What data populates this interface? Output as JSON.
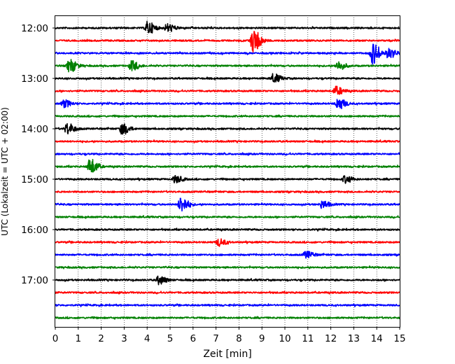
{
  "chart_data": {
    "type": "line",
    "title": "",
    "xlabel": "Zeit  [min]",
    "ylabel": "UTC (Lokalzeit = UTC + 02:00)",
    "xlim": [
      0,
      15
    ],
    "x_ticks": [
      0,
      1,
      2,
      3,
      4,
      5,
      6,
      7,
      8,
      9,
      10,
      11,
      12,
      13,
      14,
      15
    ],
    "y_tick_labels": [
      "12:00",
      "13:00",
      "14:00",
      "15:00",
      "16:00",
      "17:00"
    ],
    "grid": "vertical dotted lines at every minute",
    "trace_interval_minutes": 15,
    "trace_colors": [
      "#000000",
      "#ff0000",
      "#0000ff",
      "#008000"
    ],
    "series": [
      {
        "start": "12:00",
        "color": "#000000",
        "events": [
          {
            "minute": 4.0,
            "amplitude": 0.45
          },
          {
            "minute": 4.85,
            "amplitude": 0.3
          }
        ]
      },
      {
        "start": "12:15",
        "color": "#ff0000",
        "events": [
          {
            "minute": 8.6,
            "amplitude": 0.85
          }
        ]
      },
      {
        "start": "12:30",
        "color": "#0000ff",
        "events": [
          {
            "minute": 13.8,
            "amplitude": 0.75
          },
          {
            "minute": 14.5,
            "amplitude": 0.35
          }
        ]
      },
      {
        "start": "12:45",
        "color": "#008000",
        "events": [
          {
            "minute": 0.6,
            "amplitude": 0.45
          },
          {
            "minute": 3.3,
            "amplitude": 0.35
          },
          {
            "minute": 12.3,
            "amplitude": 0.3
          }
        ]
      },
      {
        "start": "13:00",
        "color": "#000000",
        "events": [
          {
            "minute": 9.5,
            "amplitude": 0.3
          }
        ]
      },
      {
        "start": "13:15",
        "color": "#ff0000",
        "events": [
          {
            "minute": 12.2,
            "amplitude": 0.3
          }
        ]
      },
      {
        "start": "13:30",
        "color": "#0000ff",
        "events": [
          {
            "minute": 12.3,
            "amplitude": 0.4
          },
          {
            "minute": 0.35,
            "amplitude": 0.25
          }
        ]
      },
      {
        "start": "13:45",
        "color": "#008000",
        "events": []
      },
      {
        "start": "14:00",
        "color": "#000000",
        "events": [
          {
            "minute": 0.5,
            "amplitude": 0.4
          },
          {
            "minute": 2.9,
            "amplitude": 0.4
          }
        ]
      },
      {
        "start": "14:15",
        "color": "#ff0000",
        "events": []
      },
      {
        "start": "14:30",
        "color": "#0000ff",
        "events": []
      },
      {
        "start": "14:45",
        "color": "#008000",
        "events": [
          {
            "minute": 1.5,
            "amplitude": 0.55
          }
        ]
      },
      {
        "start": "15:00",
        "color": "#000000",
        "events": [
          {
            "minute": 5.2,
            "amplitude": 0.25
          },
          {
            "minute": 12.6,
            "amplitude": 0.25
          }
        ]
      },
      {
        "start": "15:15",
        "color": "#ff0000",
        "events": []
      },
      {
        "start": "15:30",
        "color": "#0000ff",
        "events": [
          {
            "minute": 5.45,
            "amplitude": 0.55
          },
          {
            "minute": 11.6,
            "amplitude": 0.25
          }
        ]
      },
      {
        "start": "15:45",
        "color": "#008000",
        "events": []
      },
      {
        "start": "16:00",
        "color": "#000000",
        "events": []
      },
      {
        "start": "16:15",
        "color": "#ff0000",
        "events": [
          {
            "minute": 7.1,
            "amplitude": 0.25
          }
        ]
      },
      {
        "start": "16:30",
        "color": "#0000ff",
        "events": [
          {
            "minute": 10.9,
            "amplitude": 0.25
          }
        ]
      },
      {
        "start": "16:45",
        "color": "#008000",
        "events": []
      },
      {
        "start": "17:00",
        "color": "#000000",
        "events": [
          {
            "minute": 4.5,
            "amplitude": 0.3
          }
        ]
      },
      {
        "start": "17:15",
        "color": "#ff0000",
        "events": []
      },
      {
        "start": "17:30",
        "color": "#0000ff",
        "events": []
      },
      {
        "start": "17:45",
        "color": "#008000",
        "events": []
      }
    ]
  }
}
